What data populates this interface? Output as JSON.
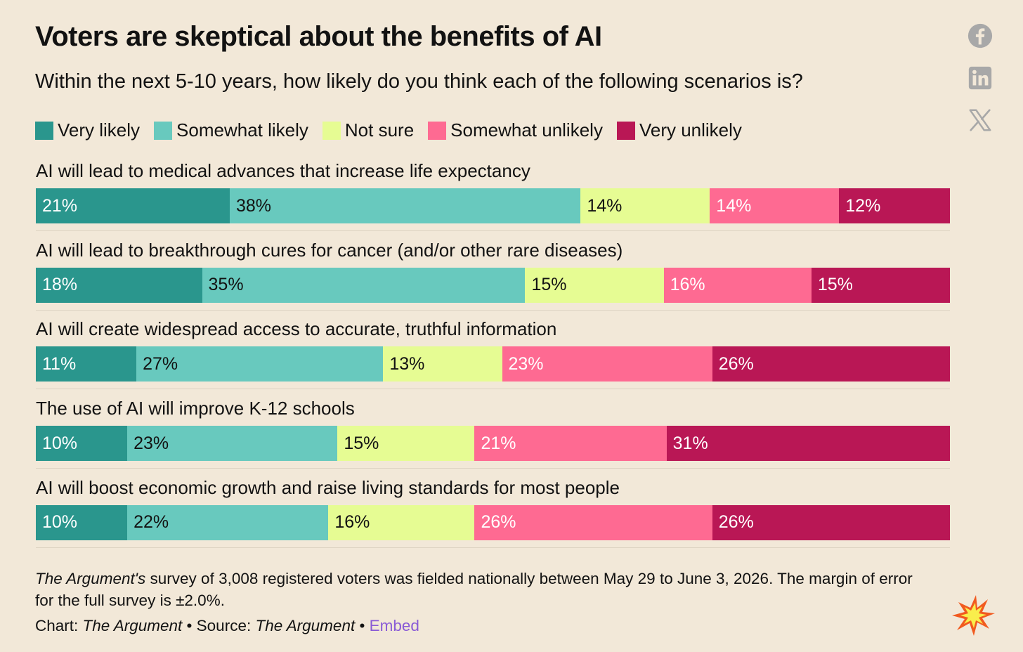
{
  "title": "Voters are skeptical about the benefits of AI",
  "subtitle": "Within the next 5-10 years, how likely do you think each of the following scenarios is?",
  "chart_data": {
    "type": "bar",
    "orientation": "horizontal-stacked-100",
    "title": "Voters are skeptical about the benefits of AI",
    "subtitle": "Within the next 5-10 years, how likely do you think each of the following scenarios is?",
    "legend_position": "top-left",
    "categories": [
      "AI will lead to medical advances that increase life expectancy",
      "AI will lead to breakthrough cures for cancer (and/or other rare diseases)",
      "AI will create widespread access to accurate, truthful information",
      "The use of AI will improve K-12 schools",
      "AI will boost economic growth and raise living standards for most people"
    ],
    "series": [
      {
        "name": "Very likely",
        "color": "#2a968d",
        "values": [
          21,
          18,
          11,
          10,
          10
        ]
      },
      {
        "name": "Somewhat likely",
        "color": "#68c9be",
        "values": [
          38,
          35,
          27,
          23,
          22
        ]
      },
      {
        "name": "Not sure",
        "color": "#e6fc93",
        "values": [
          14,
          15,
          13,
          15,
          16
        ]
      },
      {
        "name": "Somewhat unlikely",
        "color": "#fe6a92",
        "values": [
          14,
          16,
          23,
          21,
          26
        ]
      },
      {
        "name": "Very unlikely",
        "color": "#b91755",
        "values": [
          12,
          15,
          26,
          31,
          26
        ]
      }
    ],
    "value_suffix": "%"
  },
  "footer": {
    "note_italic": "The Argument's",
    "note_rest": " survey of 3,008 registered voters was fielded nationally between May 29 to June 3, 2026. The margin of error for the full survey is ±2.0%.",
    "chart_prefix": "Chart: ",
    "chart_name": "The Argument",
    "separator1": " • Source: ",
    "source_name": "The Argument",
    "separator2": " • ",
    "embed_label": "Embed"
  },
  "share": {
    "icons": [
      "facebook-icon",
      "linkedin-icon",
      "x-icon"
    ],
    "color": "#a8a8a8"
  }
}
